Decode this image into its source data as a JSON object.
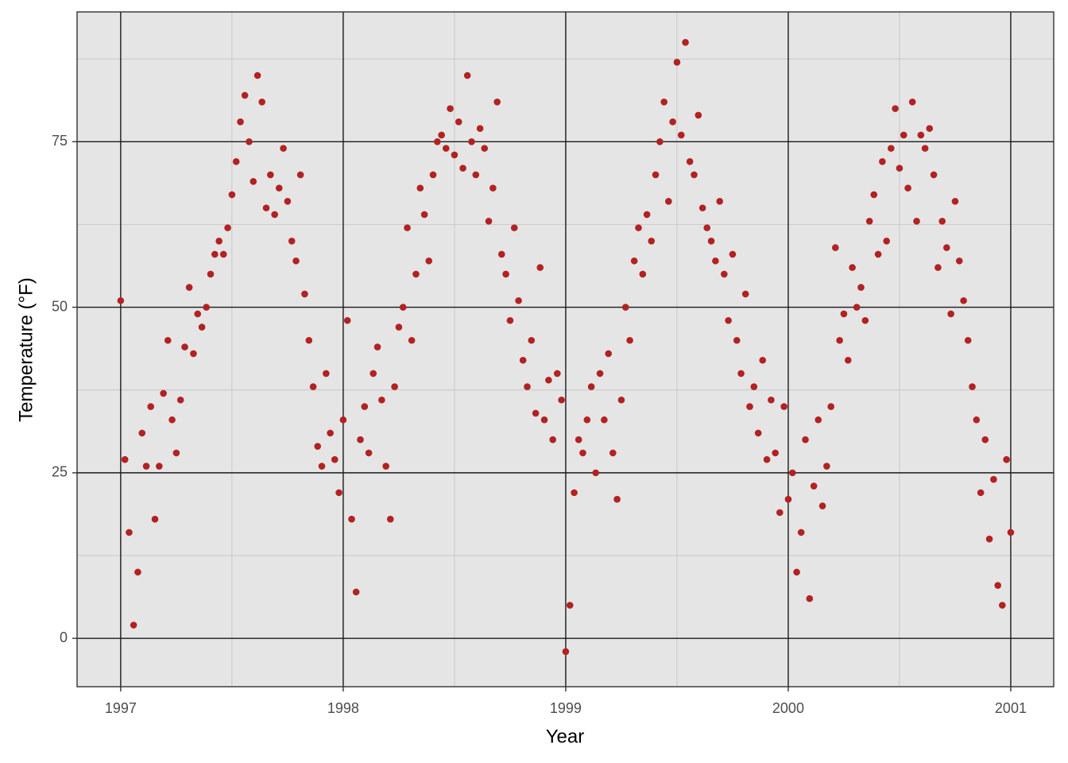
{
  "chart_data": {
    "type": "scatter",
    "xlabel": "Year",
    "ylabel": "Temperature (°F)",
    "xlim": [
      1996.804,
      2001.193
    ],
    "ylim": [
      -7.3,
      94.6
    ],
    "xticks": [
      1997,
      1998,
      1999,
      2000,
      2001
    ],
    "yticks": [
      0,
      25,
      50,
      75
    ],
    "xminorticks": [
      1997.5,
      1998.5,
      1999.5,
      2000.5
    ],
    "yminorticks": [
      12.5,
      37.5,
      62.5,
      87.5
    ],
    "grid": true,
    "series": [
      {
        "name": "Temperature",
        "color": "#b22222",
        "x": [
          1997,
          1997.019,
          1997.038,
          1997.058,
          1997.077,
          1997.096,
          1997.115,
          1997.135,
          1997.154,
          1997.173,
          1997.192,
          1997.212,
          1997.231,
          1997.25,
          1997.269,
          1997.288,
          1997.308,
          1997.327,
          1997.346,
          1997.365,
          1997.385,
          1997.404,
          1997.423,
          1997.442,
          1997.462,
          1997.481,
          1997.5,
          1997.519,
          1997.538,
          1997.558,
          1997.577,
          1997.596,
          1997.615,
          1997.635,
          1997.654,
          1997.673,
          1997.692,
          1997.712,
          1997.731,
          1997.75,
          1997.769,
          1997.788,
          1997.808,
          1997.827,
          1997.846,
          1997.865,
          1997.885,
          1997.904,
          1997.923,
          1997.942,
          1997.962,
          1997.981,
          1998,
          1998.019,
          1998.038,
          1998.058,
          1998.077,
          1998.096,
          1998.115,
          1998.135,
          1998.154,
          1998.173,
          1998.192,
          1998.212,
          1998.231,
          1998.25,
          1998.269,
          1998.288,
          1998.308,
          1998.327,
          1998.346,
          1998.365,
          1998.385,
          1998.404,
          1998.423,
          1998.442,
          1998.462,
          1998.481,
          1998.5,
          1998.519,
          1998.538,
          1998.558,
          1998.577,
          1998.596,
          1998.615,
          1998.635,
          1998.654,
          1998.673,
          1998.692,
          1998.712,
          1998.731,
          1998.75,
          1998.769,
          1998.788,
          1998.808,
          1998.827,
          1998.846,
          1998.865,
          1998.885,
          1998.904,
          1998.923,
          1998.942,
          1998.962,
          1998.981,
          1999,
          1999.019,
          1999.038,
          1999.058,
          1999.077,
          1999.096,
          1999.115,
          1999.135,
          1999.154,
          1999.173,
          1999.192,
          1999.212,
          1999.231,
          1999.25,
          1999.269,
          1999.288,
          1999.308,
          1999.327,
          1999.346,
          1999.365,
          1999.385,
          1999.404,
          1999.423,
          1999.442,
          1999.462,
          1999.481,
          1999.5,
          1999.519,
          1999.538,
          1999.558,
          1999.577,
          1999.596,
          1999.615,
          1999.635,
          1999.654,
          1999.673,
          1999.692,
          1999.712,
          1999.731,
          1999.75,
          1999.769,
          1999.788,
          1999.808,
          1999.827,
          1999.846,
          1999.865,
          1999.885,
          1999.904,
          1999.923,
          1999.942,
          1999.962,
          1999.981,
          2000,
          2000.019,
          2000.038,
          2000.058,
          2000.077,
          2000.096,
          2000.115,
          2000.135,
          2000.154,
          2000.173,
          2000.192,
          2000.212,
          2000.231,
          2000.25,
          2000.269,
          2000.288,
          2000.308,
          2000.327,
          2000.346,
          2000.365,
          2000.385,
          2000.404,
          2000.423,
          2000.442,
          2000.462,
          2000.481,
          2000.5,
          2000.519,
          2000.538,
          2000.558,
          2000.577,
          2000.596,
          2000.615,
          2000.635,
          2000.654,
          2000.673,
          2000.692,
          2000.712,
          2000.731,
          2000.75,
          2000.769,
          2000.788,
          2000.808,
          2000.827,
          2000.846,
          2000.865,
          2000.885,
          2000.904,
          2000.923,
          2000.942,
          2000.962,
          2000.981,
          2001
        ],
        "values": [
          51,
          27,
          16,
          2,
          10,
          31,
          26,
          35,
          18,
          26,
          37,
          45,
          33,
          28,
          36,
          44,
          53,
          43,
          49,
          47,
          50,
          55,
          58,
          60,
          58,
          62,
          67,
          72,
          78,
          82,
          75,
          69,
          85,
          81,
          65,
          70,
          64,
          68,
          74,
          66,
          60,
          57,
          70,
          52,
          45,
          38,
          29,
          26,
          40,
          31,
          27,
          22,
          33,
          48,
          18,
          7,
          30,
          35,
          28,
          40,
          44,
          36,
          26,
          18,
          38,
          47,
          50,
          62,
          45,
          55,
          68,
          64,
          57,
          70,
          75,
          76,
          74,
          80,
          73,
          78,
          71,
          85,
          75,
          70,
          77,
          74,
          63,
          68,
          81,
          58,
          55,
          48,
          62,
          51,
          42,
          38,
          45,
          34,
          56,
          33,
          39,
          30,
          40,
          36,
          -2,
          5,
          22,
          30,
          28,
          33,
          38,
          25,
          40,
          33,
          43,
          28,
          21,
          36,
          50,
          45,
          57,
          62,
          55,
          64,
          60,
          70,
          75,
          81,
          66,
          78,
          87,
          76,
          90,
          72,
          70,
          79,
          65,
          62,
          60,
          57,
          66,
          55,
          48,
          58,
          45,
          40,
          52,
          35,
          38,
          31,
          42,
          27,
          36,
          28,
          19,
          35,
          21,
          25,
          10,
          16,
          30,
          6,
          23,
          33,
          20,
          26,
          35,
          59,
          45,
          49,
          42,
          56,
          50,
          53,
          48,
          63,
          67,
          58,
          72,
          60,
          74,
          80,
          71,
          76,
          68,
          81,
          63,
          76,
          74,
          77,
          70,
          56,
          63,
          59,
          49,
          66,
          57,
          51,
          45,
          38,
          33,
          22,
          30,
          15,
          24,
          8,
          5,
          27,
          16
        ]
      }
    ]
  }
}
